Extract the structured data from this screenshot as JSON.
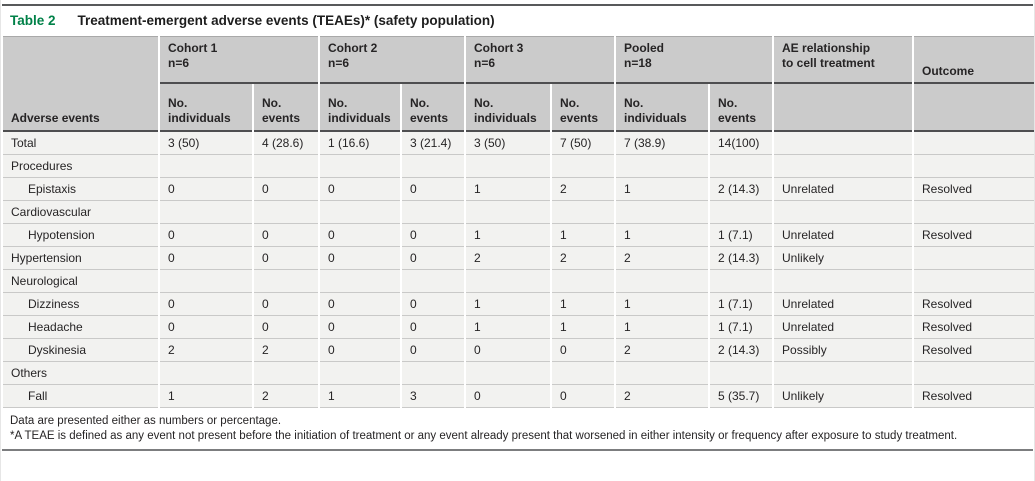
{
  "title": {
    "label": "Table 2",
    "caption": "Treatment-emergent adverse events (TEAEs)* (safety population)"
  },
  "colors": {
    "accent_green": "#008148",
    "header_bg": "#cbcbcb",
    "row_bg": "#f2f2f0",
    "dark_rule": "#4e4e50",
    "frame_rule": "#58595b"
  },
  "table": {
    "row_header_label": "Adverse events",
    "groups": [
      {
        "label": "Cohort 1",
        "n": "n=6"
      },
      {
        "label": "Cohort 2",
        "n": "n=6"
      },
      {
        "label": "Cohort 3",
        "n": "n=6"
      },
      {
        "label": "Pooled",
        "n": "n=18"
      }
    ],
    "sub_headers": [
      {
        "l1": "No.",
        "l2": "individuals"
      },
      {
        "l1": "No.",
        "l2": "events"
      },
      {
        "l1": "No.",
        "l2": "individuals"
      },
      {
        "l1": "No.",
        "l2": "events"
      },
      {
        "l1": "No.",
        "l2": "individuals"
      },
      {
        "l1": "No.",
        "l2": "events"
      },
      {
        "l1": "No.",
        "l2": "individuals"
      },
      {
        "l1": "No.",
        "l2": "events"
      }
    ],
    "ae_relationship_header": {
      "line1": "AE relationship",
      "line2": "to cell treatment"
    },
    "outcome_header": "Outcome",
    "rows": [
      {
        "label": "Total",
        "type": "data",
        "indent": false,
        "values": [
          "3 (50)",
          "4 (28.6)",
          "1 (16.6)",
          "3 (21.4)",
          "3 (50)",
          "7 (50)",
          "7 (38.9)",
          "14(100)"
        ],
        "relationship": "",
        "outcome": ""
      },
      {
        "label": "Procedures",
        "type": "category"
      },
      {
        "label": "Epistaxis",
        "type": "data",
        "indent": true,
        "values": [
          "0",
          "0",
          "0",
          "0",
          "1",
          "2",
          "1",
          "2 (14.3)"
        ],
        "relationship": "Unrelated",
        "outcome": "Resolved"
      },
      {
        "label": "Cardiovascular",
        "type": "category"
      },
      {
        "label": "Hypotension",
        "type": "data",
        "indent": true,
        "values": [
          "0",
          "0",
          "0",
          "0",
          "1",
          "1",
          "1",
          "1 (7.1)"
        ],
        "relationship": "Unrelated",
        "outcome": "Resolved"
      },
      {
        "label": "Hypertension",
        "type": "data",
        "indent": false,
        "values": [
          "0",
          "0",
          "0",
          "0",
          "2",
          "2",
          "2",
          "2 (14.3)"
        ],
        "relationship": "Unlikely",
        "outcome": ""
      },
      {
        "label": "Neurological",
        "type": "category"
      },
      {
        "label": "Dizziness",
        "type": "data",
        "indent": true,
        "values": [
          "0",
          "0",
          "0",
          "0",
          "1",
          "1",
          "1",
          "1 (7.1)"
        ],
        "relationship": "Unrelated",
        "outcome": "Resolved"
      },
      {
        "label": "Headache",
        "type": "data",
        "indent": true,
        "values": [
          "0",
          "0",
          "0",
          "0",
          "1",
          "1",
          "1",
          "1 (7.1)"
        ],
        "relationship": "Unrelated",
        "outcome": "Resolved"
      },
      {
        "label": "Dyskinesia",
        "type": "data",
        "indent": true,
        "values": [
          "2",
          "2",
          "0",
          "0",
          "0",
          "0",
          "2",
          "2 (14.3)"
        ],
        "relationship": "Possibly",
        "outcome": "Resolved"
      },
      {
        "label": "Others",
        "type": "category"
      },
      {
        "label": "Fall",
        "type": "data",
        "indent": true,
        "values": [
          "1",
          "2",
          "1",
          "3",
          "0",
          "0",
          "2",
          "5 (35.7)"
        ],
        "relationship": "Unlikely",
        "outcome": "Resolved"
      }
    ],
    "footnotes": [
      "Data are presented either as numbers or percentage.",
      "*A TEAE is defined as any event not present before the initiation of treatment or any event already present that worsened in either intensity or frequency after exposure to study treatment."
    ]
  }
}
